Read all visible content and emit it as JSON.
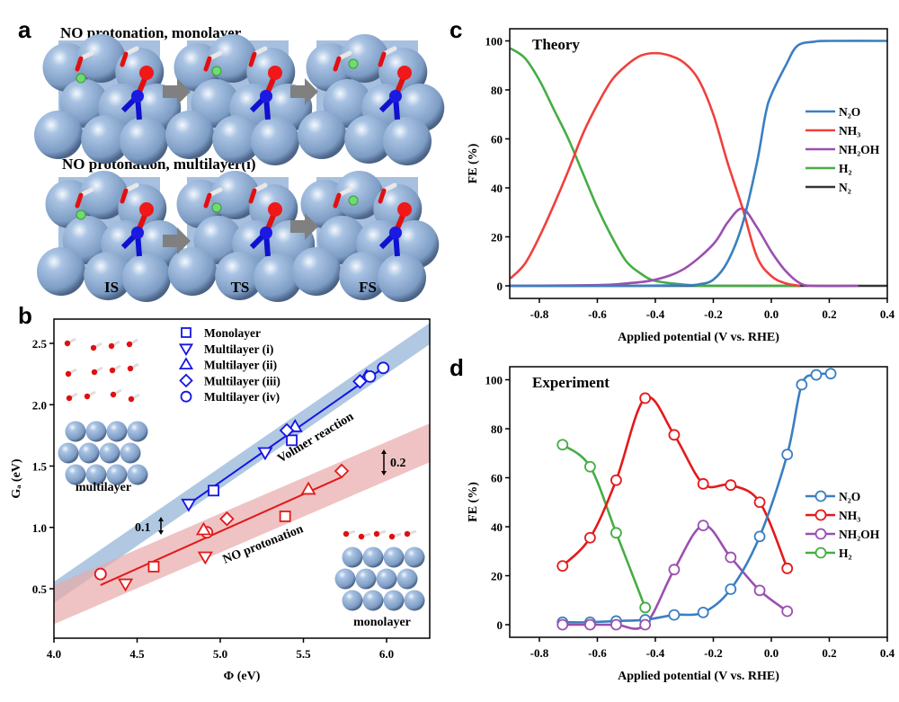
{
  "panel_a": {
    "letter": "a",
    "row1_title": "NO protonation, monolayer",
    "row2_title": "NO protonation, multilayer(i)",
    "state_labels": [
      "IS",
      "TS",
      "FS"
    ]
  },
  "chart_data": [
    {
      "panel": "b",
      "type": "scatter",
      "xlabel": "Φ (eV)",
      "ylabel": "Gₐ (eV)",
      "xlim": [
        4.0,
        6.26
      ],
      "ylim": [
        0.1,
        2.7
      ],
      "xticks": [
        "4.0",
        "4.5",
        "5.0",
        "5.5",
        "6.0"
      ],
      "yticks": [
        "0.5",
        "1.0",
        "1.5",
        "2.0",
        "2.5"
      ],
      "legend_placement": "top-center",
      "legend": [
        {
          "name": "Monolayer",
          "marker": "square"
        },
        {
          "name": "Multilayer (i)",
          "marker": "triangle-down"
        },
        {
          "name": "Multilayer (ii)",
          "marker": "triangle-up"
        },
        {
          "name": "Multilayer (iii)",
          "marker": "diamond"
        },
        {
          "name": "Multilayer (iv)",
          "marker": "circle"
        }
      ],
      "groups": [
        {
          "label": "Volmer reaction",
          "color": "#1414e6",
          "band_color": "#8fb0d6",
          "band_width": 0.1,
          "band_label": "0.1",
          "band_line": [
            [
              4.0,
              0.47
            ],
            [
              6.26,
              2.58
            ]
          ],
          "fit_line": [
            [
              4.81,
              1.19
            ],
            [
              5.98,
              2.3
            ]
          ],
          "points": [
            {
              "marker": "square",
              "x": 4.96,
              "y": 1.3
            },
            {
              "marker": "square",
              "x": 5.43,
              "y": 1.71
            },
            {
              "marker": "triangle-down",
              "x": 4.81,
              "y": 1.19
            },
            {
              "marker": "triangle-down",
              "x": 5.27,
              "y": 1.61
            },
            {
              "marker": "triangle-up",
              "x": 5.45,
              "y": 1.82
            },
            {
              "marker": "triangle-up",
              "x": 5.88,
              "y": 2.23
            },
            {
              "marker": "diamond",
              "x": 5.4,
              "y": 1.79
            },
            {
              "marker": "diamond",
              "x": 5.84,
              "y": 2.19
            },
            {
              "marker": "circle",
              "x": 5.9,
              "y": 2.23
            },
            {
              "marker": "circle",
              "x": 5.98,
              "y": 2.3
            },
            {
              "marker": "circle",
              "x": 4.28,
              "y": 0.62
            }
          ]
        },
        {
          "label": "NO protonation",
          "color": "#e31a1a",
          "band_color": "#e8aaaa",
          "band_width": 0.2,
          "band_label": "0.2",
          "band_line": [
            [
              4.0,
              0.37
            ],
            [
              6.26,
              1.69
            ]
          ],
          "fit_line": [
            [
              4.28,
              0.53
            ],
            [
              5.73,
              1.41
            ]
          ],
          "points": [
            {
              "marker": "circle",
              "x": 4.28,
              "y": 0.62
            },
            {
              "marker": "circle",
              "x": 4.92,
              "y": 0.96
            },
            {
              "marker": "triangle-down",
              "x": 4.43,
              "y": 0.54
            },
            {
              "marker": "triangle-down",
              "x": 4.91,
              "y": 0.76
            },
            {
              "marker": "square",
              "x": 4.6,
              "y": 0.68
            },
            {
              "marker": "square",
              "x": 5.39,
              "y": 1.09
            },
            {
              "marker": "diamond",
              "x": 5.04,
              "y": 1.07
            },
            {
              "marker": "diamond",
              "x": 5.73,
              "y": 1.46
            },
            {
              "marker": "triangle-up",
              "x": 5.53,
              "y": 1.31
            },
            {
              "marker": "triangle-up",
              "x": 4.9,
              "y": 0.98
            }
          ]
        }
      ],
      "insets": [
        "multilayer",
        "monolayer"
      ]
    },
    {
      "panel": "c",
      "type": "line",
      "title": "Theory",
      "xlabel": "Applied potential (V vs. RHE)",
      "ylabel": "FE (%)",
      "xlim": [
        -0.9,
        0.4
      ],
      "ylim": [
        -5,
        105
      ],
      "xticks": [
        "-0.8",
        "-0.6",
        "-0.4",
        "-0.2",
        "0.0",
        "0.2",
        "0.4"
      ],
      "yticks": [
        "0",
        "20",
        "40",
        "60",
        "80",
        "100"
      ],
      "legend_placement": "right",
      "series": [
        {
          "name": "N₂O",
          "color": "#3a7fc1",
          "x": [
            -0.9,
            -0.5,
            -0.3,
            -0.25,
            -0.2,
            -0.15,
            -0.1,
            -0.05,
            -0.02,
            0.0,
            0.05,
            0.09,
            0.15,
            0.2,
            0.4
          ],
          "y": [
            0,
            0,
            0.2,
            0.6,
            2.5,
            10,
            25,
            50,
            70,
            78,
            90,
            98,
            99.7,
            100,
            100
          ]
        },
        {
          "name": "NH₃",
          "color": "#f0403c",
          "x": [
            -0.9,
            -0.85,
            -0.8,
            -0.75,
            -0.7,
            -0.65,
            -0.6,
            -0.55,
            -0.5,
            -0.45,
            -0.4,
            -0.35,
            -0.3,
            -0.25,
            -0.2,
            -0.15,
            -0.1,
            -0.05,
            0.0,
            0.05,
            0.1
          ],
          "y": [
            3,
            9,
            20,
            33,
            47,
            62,
            74,
            84,
            90,
            94,
            95,
            94,
            91,
            84,
            70,
            50,
            32,
            12,
            4,
            1,
            0
          ]
        },
        {
          "name": "NH₂OH",
          "color": "#9b4fb0",
          "x": [
            -0.9,
            -0.6,
            -0.5,
            -0.4,
            -0.3,
            -0.2,
            -0.15,
            -0.1,
            -0.05,
            0.0,
            0.05,
            0.1,
            0.15,
            0.3
          ],
          "y": [
            0,
            0.3,
            1,
            2.5,
            7,
            17,
            26,
            31.5,
            24,
            14,
            6,
            1,
            0,
            0
          ]
        },
        {
          "name": "H₂",
          "color": "#46ad44",
          "x": [
            -0.9,
            -0.85,
            -0.8,
            -0.75,
            -0.7,
            -0.65,
            -0.6,
            -0.55,
            -0.5,
            -0.45,
            -0.4,
            -0.3,
            -0.2,
            0.1
          ],
          "y": [
            97,
            93,
            84,
            72,
            60,
            46,
            32,
            20,
            10,
            5,
            2,
            0.5,
            0,
            0
          ]
        },
        {
          "name": "N₂",
          "color": "#333333",
          "x": [
            -0.9,
            0.4
          ],
          "y": [
            0,
            0
          ]
        }
      ]
    },
    {
      "panel": "d",
      "type": "line",
      "title": "Experiment",
      "xlabel": "Applied potential (V vs. RHE)",
      "ylabel": "FE (%)",
      "xlim": [
        -0.9,
        0.4
      ],
      "ylim": [
        -5,
        105
      ],
      "xticks": [
        "-0.8",
        "-0.6",
        "-0.4",
        "-0.2",
        "0.0",
        "0.2",
        "0.4"
      ],
      "yticks": [
        "0",
        "20",
        "40",
        "60",
        "80",
        "100"
      ],
      "legend_placement": "right",
      "markers": "open-circle",
      "series": [
        {
          "name": "N₂O",
          "color": "#3a7fc1",
          "x": [
            -0.72,
            -0.625,
            -0.535,
            -0.435,
            -0.335,
            -0.235,
            -0.14,
            -0.04,
            0.055,
            0.105,
            0.155,
            0.205
          ],
          "y": [
            1,
            1,
            1.5,
            2,
            4,
            5,
            14.5,
            36,
            69.5,
            98,
            102,
            102.5
          ]
        },
        {
          "name": "NH₃",
          "color": "#e31a1a",
          "x": [
            -0.72,
            -0.625,
            -0.535,
            -0.435,
            -0.335,
            -0.235,
            -0.14,
            -0.04,
            0.055
          ],
          "y": [
            24,
            35.5,
            59,
            92.5,
            77.5,
            57.5,
            57,
            50,
            23
          ]
        },
        {
          "name": "NH₂OH",
          "color": "#9b4fb0",
          "x": [
            -0.72,
            -0.625,
            -0.535,
            -0.435,
            -0.335,
            -0.235,
            -0.14,
            -0.04,
            0.055
          ],
          "y": [
            0,
            0,
            0,
            0,
            22.5,
            40.5,
            27.5,
            14,
            5.5
          ]
        },
        {
          "name": "H₂",
          "color": "#46ad44",
          "x": [
            -0.72,
            -0.625,
            -0.535,
            -0.435
          ],
          "y": [
            73.5,
            64.5,
            37.5,
            7
          ]
        }
      ]
    }
  ]
}
